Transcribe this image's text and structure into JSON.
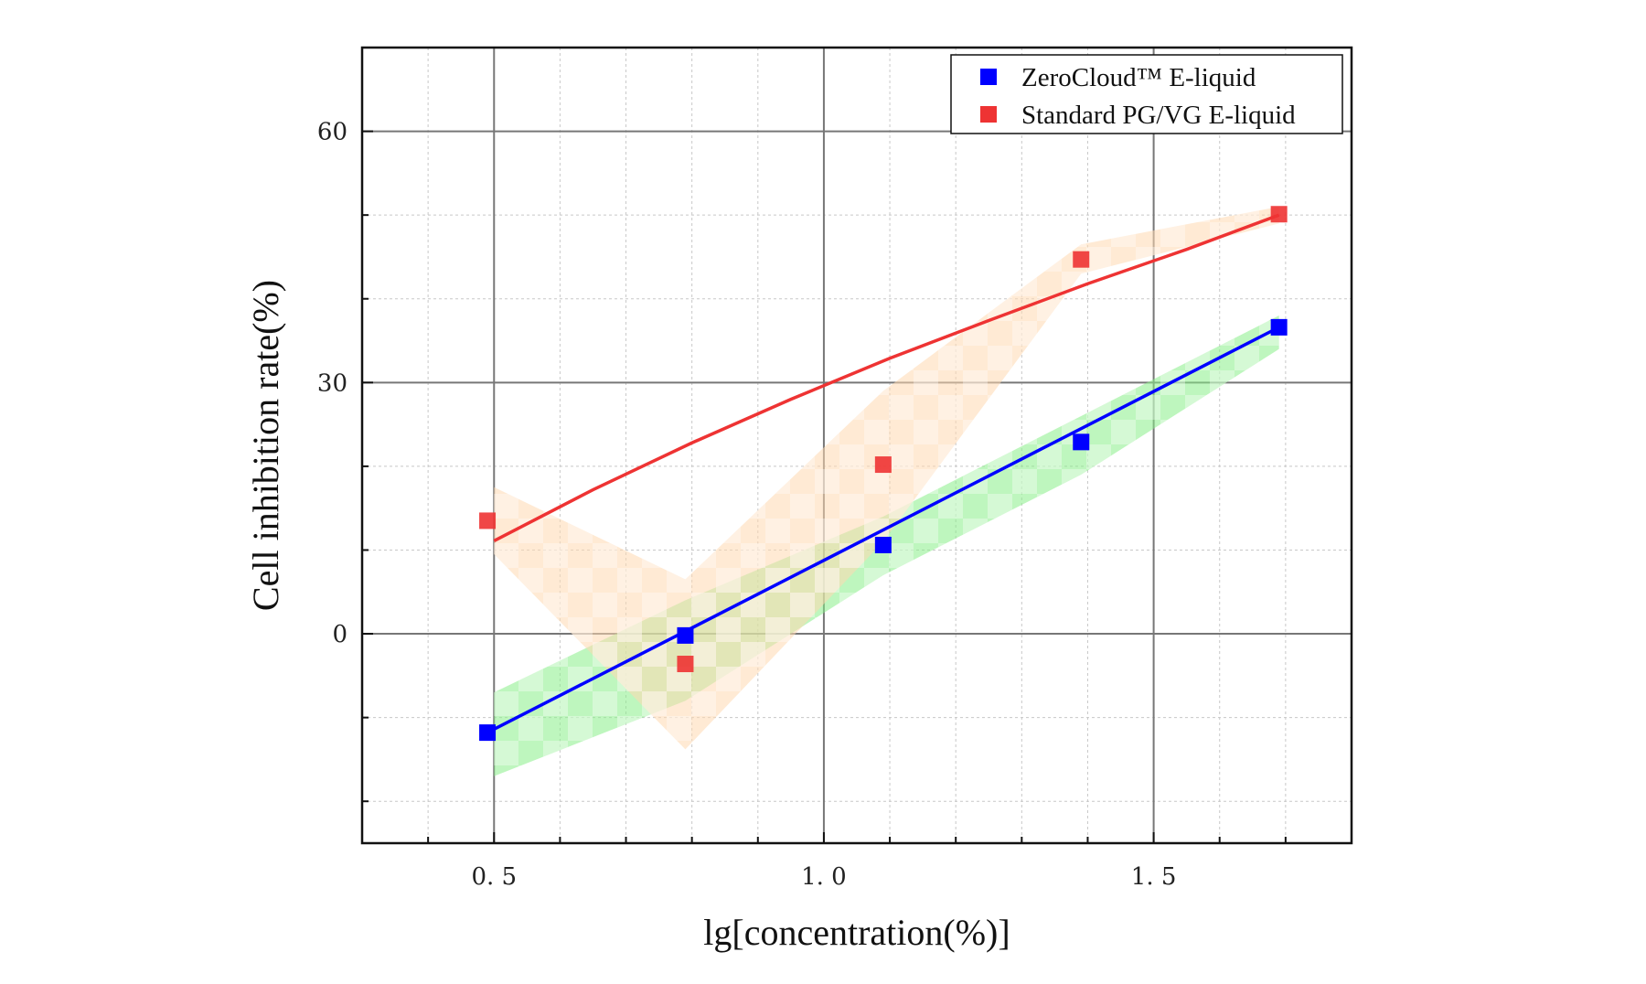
{
  "chart_data": {
    "type": "scatter",
    "xlabel": "lg[concentration(%)]",
    "ylabel": "Cell inhibition rate(%)",
    "xlim": [
      0.3,
      1.8
    ],
    "ylim": [
      -25,
      70
    ],
    "x_major_ticks": [
      0.5,
      1.0,
      1.5
    ],
    "x_tick_labels": [
      "0. 5",
      "1. 0",
      "1. 5"
    ],
    "y_major_ticks": [
      0,
      30,
      60
    ],
    "y_tick_labels": [
      "0",
      "30",
      "60"
    ],
    "grid": true,
    "legend_position": "top-right",
    "series": [
      {
        "name": "ZeroCloud™ E-liquid",
        "color": "#0000ff",
        "marker": "square",
        "points": [
          {
            "x": 0.49,
            "y": -11.8
          },
          {
            "x": 0.79,
            "y": -0.2
          },
          {
            "x": 1.09,
            "y": 10.6
          },
          {
            "x": 1.39,
            "y": 22.9
          },
          {
            "x": 1.69,
            "y": 36.6
          }
        ],
        "fit_line": [
          {
            "x": 0.49,
            "y": -11.8
          },
          {
            "x": 1.69,
            "y": 36.6
          }
        ],
        "band_color": "#88ee88",
        "band_upper": [
          {
            "x": 0.5,
            "y": -7
          },
          {
            "x": 0.79,
            "y": 4
          },
          {
            "x": 1.09,
            "y": 14
          },
          {
            "x": 1.39,
            "y": 26
          },
          {
            "x": 1.69,
            "y": 38
          }
        ],
        "band_lower": [
          {
            "x": 0.5,
            "y": -17
          },
          {
            "x": 0.79,
            "y": -8
          },
          {
            "x": 1.09,
            "y": 7
          },
          {
            "x": 1.39,
            "y": 19
          },
          {
            "x": 1.69,
            "y": 34
          }
        ]
      },
      {
        "name": "Standard PG/VG E-liquid",
        "color": "#ee3333",
        "marker": "square",
        "points": [
          {
            "x": 0.49,
            "y": 13.5
          },
          {
            "x": 0.79,
            "y": -3.6
          },
          {
            "x": 1.09,
            "y": 20.2
          },
          {
            "x": 1.39,
            "y": 44.7
          },
          {
            "x": 1.69,
            "y": 50.1
          }
        ],
        "fit_line": [
          {
            "x": 0.5,
            "y": 11.1
          },
          {
            "x": 0.65,
            "y": 17.2
          },
          {
            "x": 0.8,
            "y": 22.8
          },
          {
            "x": 0.95,
            "y": 28.0
          },
          {
            "x": 1.1,
            "y": 32.9
          },
          {
            "x": 1.25,
            "y": 37.4
          },
          {
            "x": 1.4,
            "y": 41.8
          },
          {
            "x": 1.55,
            "y": 45.9
          },
          {
            "x": 1.69,
            "y": 50.0
          }
        ],
        "band_color": "#ffd8b0",
        "band_upper": [
          {
            "x": 0.5,
            "y": 17.5
          },
          {
            "x": 0.79,
            "y": 6.5
          },
          {
            "x": 1.09,
            "y": 29
          },
          {
            "x": 1.39,
            "y": 46.5
          },
          {
            "x": 1.69,
            "y": 51
          }
        ],
        "band_lower": [
          {
            "x": 0.5,
            "y": 9.5
          },
          {
            "x": 0.79,
            "y": -13.8
          },
          {
            "x": 1.09,
            "y": 11
          },
          {
            "x": 1.39,
            "y": 43
          },
          {
            "x": 1.69,
            "y": 49
          }
        ]
      }
    ]
  }
}
